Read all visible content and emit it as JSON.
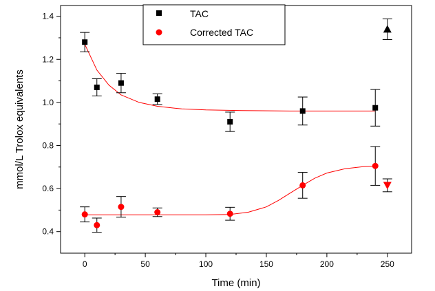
{
  "chart_data": {
    "type": "scatter",
    "title": "",
    "xlabel": "Time (min)",
    "ylabel": "mmol/L Trolox equivalents",
    "xlim": [
      -20,
      270
    ],
    "ylim": [
      0.3,
      1.45
    ],
    "x_ticks": [
      0,
      50,
      100,
      150,
      200,
      250
    ],
    "y_ticks": [
      0.4,
      0.6,
      0.8,
      1.0,
      1.2,
      1.4
    ],
    "x_tick_labels": [
      "0",
      "50",
      "100",
      "150",
      "200",
      "250"
    ],
    "y_tick_labels": [
      "0.4",
      "0.6",
      "0.8",
      "1.0",
      "1.2",
      "1.4"
    ],
    "grid": false,
    "legend_position": "top-center",
    "series": [
      {
        "name": "TAC",
        "marker": "square",
        "color": "#000000",
        "points": [
          {
            "x": 0,
            "y": 1.28,
            "err": 0.045
          },
          {
            "x": 10,
            "y": 1.07,
            "err": 0.04
          },
          {
            "x": 30,
            "y": 1.09,
            "err": 0.045
          },
          {
            "x": 60,
            "y": 1.015,
            "err": 0.025
          },
          {
            "x": 120,
            "y": 0.91,
            "err": 0.045
          },
          {
            "x": 180,
            "y": 0.96,
            "err": 0.065
          },
          {
            "x": 240,
            "y": 0.975,
            "err": 0.085
          }
        ],
        "extra_points": [
          {
            "x": 250,
            "y": 1.34,
            "err": 0.048,
            "marker": "triangle-up"
          }
        ],
        "fit": [
          {
            "x": 0,
            "y": 1.27
          },
          {
            "x": 10,
            "y": 1.15
          },
          {
            "x": 20,
            "y": 1.08
          },
          {
            "x": 30,
            "y": 1.035
          },
          {
            "x": 45,
            "y": 1.0
          },
          {
            "x": 60,
            "y": 0.982
          },
          {
            "x": 80,
            "y": 0.97
          },
          {
            "x": 100,
            "y": 0.965
          },
          {
            "x": 130,
            "y": 0.962
          },
          {
            "x": 170,
            "y": 0.96
          },
          {
            "x": 240,
            "y": 0.96
          }
        ]
      },
      {
        "name": "Corrected TAC",
        "marker": "circle",
        "color": "#ff0000",
        "points": [
          {
            "x": 0,
            "y": 0.48,
            "err": 0.035
          },
          {
            "x": 10,
            "y": 0.43,
            "err": 0.033
          },
          {
            "x": 30,
            "y": 0.515,
            "err": 0.048
          },
          {
            "x": 60,
            "y": 0.49,
            "err": 0.02
          },
          {
            "x": 120,
            "y": 0.483,
            "err": 0.03
          },
          {
            "x": 180,
            "y": 0.615,
            "err": 0.06
          },
          {
            "x": 240,
            "y": 0.705,
            "err": 0.09
          }
        ],
        "extra_points": [
          {
            "x": 250,
            "y": 0.615,
            "err": 0.03,
            "marker": "triangle-down"
          }
        ],
        "fit": [
          {
            "x": 0,
            "y": 0.478
          },
          {
            "x": 100,
            "y": 0.478
          },
          {
            "x": 120,
            "y": 0.48
          },
          {
            "x": 135,
            "y": 0.49
          },
          {
            "x": 150,
            "y": 0.515
          },
          {
            "x": 160,
            "y": 0.545
          },
          {
            "x": 170,
            "y": 0.58
          },
          {
            "x": 180,
            "y": 0.615
          },
          {
            "x": 190,
            "y": 0.648
          },
          {
            "x": 200,
            "y": 0.672
          },
          {
            "x": 215,
            "y": 0.692
          },
          {
            "x": 230,
            "y": 0.702
          },
          {
            "x": 240,
            "y": 0.705
          }
        ]
      }
    ]
  }
}
